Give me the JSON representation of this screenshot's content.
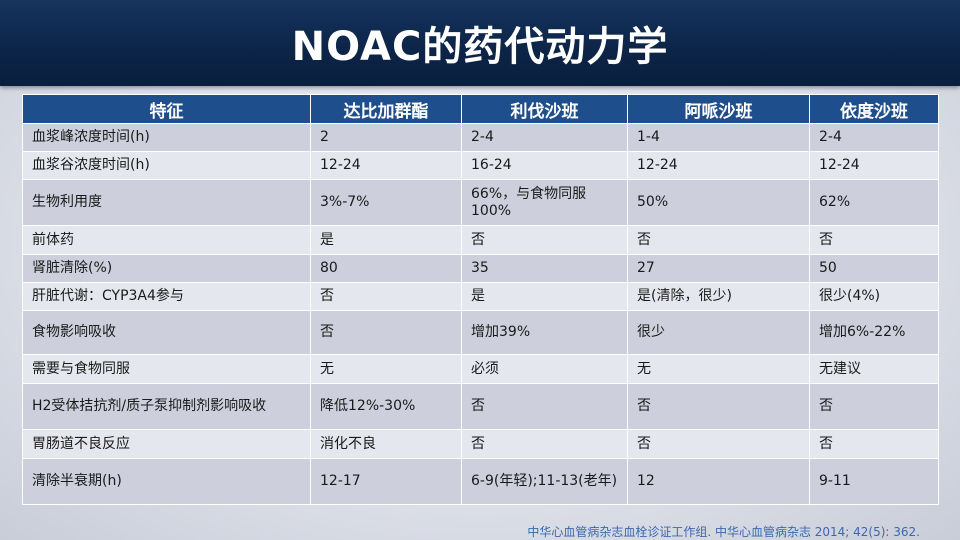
{
  "title": "NOAC的药代动力学",
  "table": {
    "headers": [
      "特征",
      "达比加群酯",
      "利伐沙班",
      "阿哌沙班",
      "依度沙班"
    ],
    "rows": [
      [
        "血浆峰浓度时间(h)",
        "2",
        "2-4",
        "1-4",
        "2-4"
      ],
      [
        "血浆谷浓度时间(h)",
        "12-24",
        "16-24",
        "12-24",
        "12-24"
      ],
      [
        "生物利用度",
        "3%-7%",
        "66%，与食物同服100%",
        "50%",
        "62%"
      ],
      [
        "前体药",
        "是",
        "否",
        "否",
        "否"
      ],
      [
        "肾脏清除(%)",
        "80",
        "35",
        "27",
        "50"
      ],
      [
        "肝脏代谢：CYP3A4参与",
        "否",
        "是",
        "是(清除，很少)",
        "很少(4%)"
      ],
      [
        "食物影响吸收",
        "否",
        "增加39%",
        "很少",
        "增加6%-22%"
      ],
      [
        "需要与食物同服",
        "无",
        "必须",
        "无",
        "无建议"
      ],
      [
        "H2受体拮抗剂/质子泵抑制剂影响吸收",
        "降低12%-30%",
        "否",
        "否",
        "否"
      ],
      [
        "胃肠道不良反应",
        "消化不良",
        "否",
        "否",
        "否"
      ],
      [
        "清除半衰期(h)",
        "12-17",
        "6-9(年轻);11-13(老年)",
        "12",
        "9-11"
      ]
    ]
  },
  "citation": "中华心血管病杂志血栓诊证工作组. 中华心血管病杂志 2014; 42(5): 362.",
  "colors": {
    "header_bg": "#0c2447",
    "table_header": "#1f4e8c",
    "row_dark": "#cdd0dc",
    "row_light": "#e5e7ee",
    "citation": "#3a68b0"
  }
}
